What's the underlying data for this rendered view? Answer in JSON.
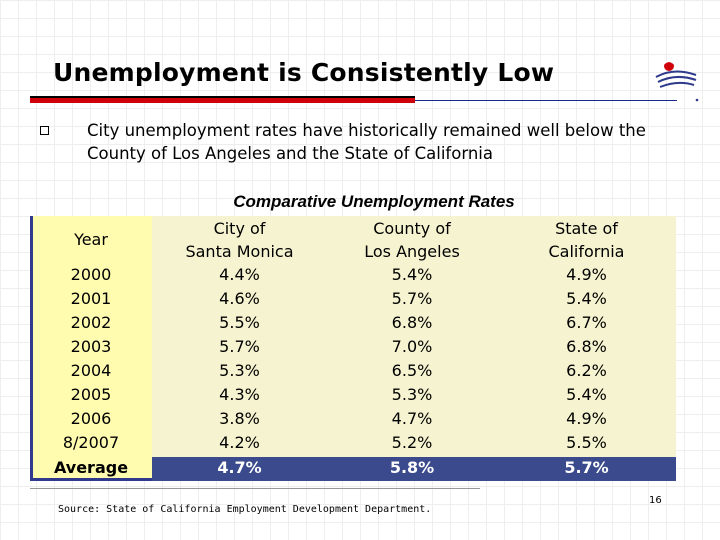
{
  "slide": {
    "title": "Unemployment is Consistently Low",
    "bullet": "City unemployment rates have historically remained well below the County of Los Angeles and the State of California",
    "table_title": "Comparative Unemployment Rates",
    "source": "Source: State of California Employment Development Department.",
    "page_number": "16"
  },
  "table": {
    "headers": {
      "year": "Year",
      "city": [
        "City of",
        "Santa Monica"
      ],
      "county": [
        "County of",
        "Los Angeles"
      ],
      "state": [
        "State of",
        "California"
      ]
    },
    "rows": [
      {
        "year": "2000",
        "city": "4.4%",
        "county": "5.4%",
        "state": "4.9%"
      },
      {
        "year": "2001",
        "city": "4.6%",
        "county": "5.7%",
        "state": "5.4%"
      },
      {
        "year": "2002",
        "city": "5.5%",
        "county": "6.8%",
        "state": "6.7%"
      },
      {
        "year": "2003",
        "city": "5.7%",
        "county": "7.0%",
        "state": "6.8%"
      },
      {
        "year": "2004",
        "city": "5.3%",
        "county": "6.5%",
        "state": "6.2%"
      },
      {
        "year": "2005",
        "city": "4.3%",
        "county": "5.3%",
        "state": "5.4%"
      },
      {
        "year": "2006",
        "city": "3.8%",
        "county": "4.7%",
        "state": "4.9%"
      },
      {
        "year": "8/2007",
        "city": "4.2%",
        "county": "5.2%",
        "state": "5.5%"
      }
    ],
    "average": {
      "year": "Average",
      "city": "4.7%",
      "county": "5.8%",
      "state": "5.7%"
    }
  },
  "colors": {
    "accent_red": "#d0000a",
    "header_blue": "#3a4a8c",
    "year_column": "#fffcb0",
    "table_bg": "#f6f4d0"
  }
}
